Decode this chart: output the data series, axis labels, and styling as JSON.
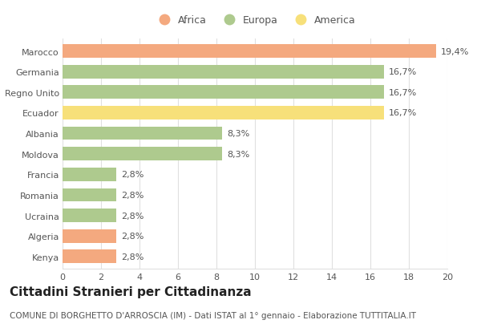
{
  "categories": [
    "Marocco",
    "Germania",
    "Regno Unito",
    "Ecuador",
    "Albania",
    "Moldova",
    "Francia",
    "Romania",
    "Ucraina",
    "Algeria",
    "Kenya"
  ],
  "values": [
    19.4,
    16.7,
    16.7,
    16.7,
    8.3,
    8.3,
    2.8,
    2.8,
    2.8,
    2.8,
    2.8
  ],
  "labels": [
    "19,4%",
    "16,7%",
    "16,7%",
    "16,7%",
    "8,3%",
    "8,3%",
    "2,8%",
    "2,8%",
    "2,8%",
    "2,8%",
    "2,8%"
  ],
  "colors": [
    "#F4A97F",
    "#AECA8E",
    "#AECA8E",
    "#F7E07A",
    "#AECA8E",
    "#AECA8E",
    "#AECA8E",
    "#AECA8E",
    "#AECA8E",
    "#F4A97F",
    "#F4A97F"
  ],
  "legend_items": [
    {
      "label": "Africa",
      "color": "#F4A97F"
    },
    {
      "label": "Europa",
      "color": "#AECA8E"
    },
    {
      "label": "America",
      "color": "#F7E07A"
    }
  ],
  "xlim": [
    0,
    20
  ],
  "xticks": [
    0,
    2,
    4,
    6,
    8,
    10,
    12,
    14,
    16,
    18,
    20
  ],
  "title": "Cittadini Stranieri per Cittadinanza",
  "subtitle": "COMUNE DI BORGHETTO D'ARROSCIA (IM) - Dati ISTAT al 1° gennaio - Elaborazione TUTTITALIA.IT",
  "title_fontsize": 11,
  "subtitle_fontsize": 7.5,
  "label_fontsize": 8,
  "tick_fontsize": 8,
  "ytick_fontsize": 8,
  "bar_height": 0.65,
  "background_color": "#ffffff",
  "grid_color": "#e0e0e0",
  "text_color": "#555555"
}
